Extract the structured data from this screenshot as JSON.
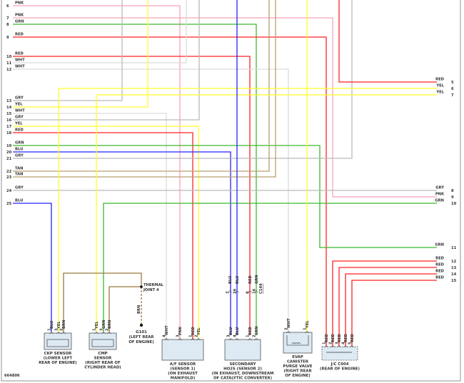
{
  "diagram_id": "664806",
  "colors": {
    "PNK": "#f6a3b8",
    "GRN": "#3cb82e",
    "RED": "#ff2222",
    "WHT": "#dcdcdc",
    "GRY": "#b9b9b9",
    "YEL": "#ffff2a",
    "BLU": "#2424ff",
    "TAN": "#b7a071",
    "BRN": "#9b7a3b"
  },
  "left_pins": [
    {
      "num": "6",
      "color": "PNK"
    },
    {
      "num": "7",
      "color": "PNK"
    },
    {
      "num": "8",
      "color": "GRN"
    },
    {
      "num": "9",
      "color": "RED"
    },
    {
      "num": "10",
      "color": "RED"
    },
    {
      "num": "11",
      "color": "WHT"
    },
    {
      "num": "12",
      "color": "WHT"
    },
    {
      "num": "13",
      "color": "GRY"
    },
    {
      "num": "14",
      "color": "YEL"
    },
    {
      "num": "15",
      "color": "WHT"
    },
    {
      "num": "16",
      "color": "GRY"
    },
    {
      "num": "17",
      "color": "YEL"
    },
    {
      "num": "18",
      "color": "RED"
    },
    {
      "num": "19",
      "color": "GRN"
    },
    {
      "num": "20",
      "color": "BLU"
    },
    {
      "num": "21",
      "color": "GRY"
    },
    {
      "num": "22",
      "color": "TAN"
    },
    {
      "num": "23",
      "color": "TAN"
    },
    {
      "num": "24",
      "color": "GRY"
    },
    {
      "num": "25",
      "color": "BLU"
    }
  ],
  "right_pins": [
    {
      "num": "5",
      "color": "RED"
    },
    {
      "num": "6",
      "color": "YEL"
    },
    {
      "num": "7",
      "color": "YEL"
    },
    {
      "num": "8",
      "color": "GRY"
    },
    {
      "num": "9",
      "color": "PNK"
    },
    {
      "num": "10",
      "color": "GRN"
    },
    {
      "num": "11",
      "color": "GRN"
    },
    {
      "num": "12",
      "color": "RED"
    },
    {
      "num": "13",
      "color": "RED"
    },
    {
      "num": "14",
      "color": "RED"
    },
    {
      "num": "15",
      "color": "RED"
    }
  ],
  "thermal_joint": {
    "line1": "THERMAL",
    "line2": "JOINT 4"
  },
  "ground": {
    "wire": "BRN",
    "name": "G101",
    "line1": "(LEFT REAR",
    "line2": "OF ENGINE)"
  },
  "inline_connector": {
    "name": "C144",
    "pins": [
      {
        "num": "7",
        "color": "BLU"
      },
      {
        "num": "26",
        "color": "BLU"
      },
      {
        "num": "8",
        "color": "RED"
      },
      {
        "num": "16",
        "color": "GRN"
      }
    ]
  },
  "components": [
    {
      "lines": [
        "CKP SENSOR",
        "(LOWER LEFT",
        "REAR OF ENGINE)"
      ],
      "pins": [
        {
          "num": "1",
          "color": "BLU"
        },
        {
          "num": "3",
          "color": "YEL"
        },
        {
          "num": "2",
          "color": "BRN"
        }
      ]
    },
    {
      "lines": [
        "CMP",
        "SENSOR",
        "(RIGHT REAR OF",
        "CYLINDER HEAD)"
      ],
      "pins": [
        {
          "num": "1",
          "color": "YEL"
        },
        {
          "num": "3",
          "color": "GRN"
        },
        {
          "num": "2",
          "color": "BRN"
        }
      ]
    },
    {
      "lines": [
        "A/F SENSOR",
        "(SENSOR 1)",
        "(ON EXHAUST",
        "MANIFOLD)"
      ],
      "pins": [
        {
          "num": "4",
          "color": "WHT"
        },
        {
          "num": "3",
          "color": "PNK"
        },
        {
          "num": "1",
          "color": "RED"
        },
        {
          "num": "2",
          "color": "YEL"
        }
      ]
    },
    {
      "lines": [
        "SECONDARY",
        "HO2S (SENSOR 2)",
        "(IN EXHAUST, DOWNSTREAM",
        "OF CATALYTIC CONVERTER)"
      ],
      "pins": [
        {
          "num": "3",
          "color": "BLU"
        },
        {
          "num": "4",
          "color": "BLU"
        },
        {
          "num": "1",
          "color": "RED"
        },
        {
          "num": "2",
          "color": "GRN"
        }
      ]
    },
    {
      "lines": [
        "EVAP",
        "CANISTER",
        "PURGE VALVE",
        "(RIGHT REAR",
        "OF ENGINE)"
      ],
      "pins": [
        {
          "num": "2",
          "color": "WHT"
        },
        {
          "num": "1",
          "color": "YEL"
        }
      ]
    },
    {
      "lines": [
        "J/C C004",
        "(REAR OF ENGINE)"
      ],
      "pins": [
        {
          "num": "1",
          "color": "RED"
        },
        {
          "num": "2",
          "color": "RED"
        },
        {
          "num": "3",
          "color": "RED"
        },
        {
          "num": "4",
          "color": "RED"
        },
        {
          "num": "5",
          "color": "RED"
        }
      ]
    }
  ]
}
